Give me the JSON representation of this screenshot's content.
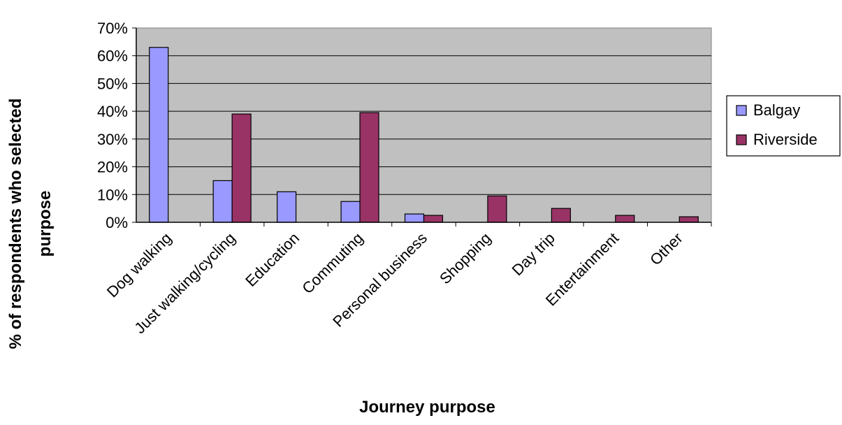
{
  "chart_data": {
    "type": "bar",
    "title": "",
    "xlabel": "Journey purpose",
    "ylabel_lines": [
      "% of respondents who selected",
      "purpose"
    ],
    "categories": [
      "Dog walking",
      "Just walking/cycling",
      "Education",
      "Commuting",
      "Personal business",
      "Shopping",
      "Day trip",
      "Entertainment",
      "Other"
    ],
    "series": [
      {
        "name": "Balgay",
        "color": "#9999ff",
        "values": [
          63.0,
          15.0,
          11.0,
          7.5,
          3.0,
          0.0,
          0.0,
          0.0,
          0.0
        ]
      },
      {
        "name": "Riverside",
        "color": "#993366",
        "values": [
          0.0,
          39.0,
          0.0,
          39.5,
          2.5,
          9.5,
          5.0,
          2.5,
          2.0
        ]
      }
    ],
    "ylim": [
      0,
      70
    ],
    "y_ticks": [
      "0%",
      "10%",
      "20%",
      "30%",
      "40%",
      "50%",
      "60%",
      "70%"
    ],
    "grid": true,
    "plot_background": "#c0c0c0",
    "legend_position": "right"
  }
}
